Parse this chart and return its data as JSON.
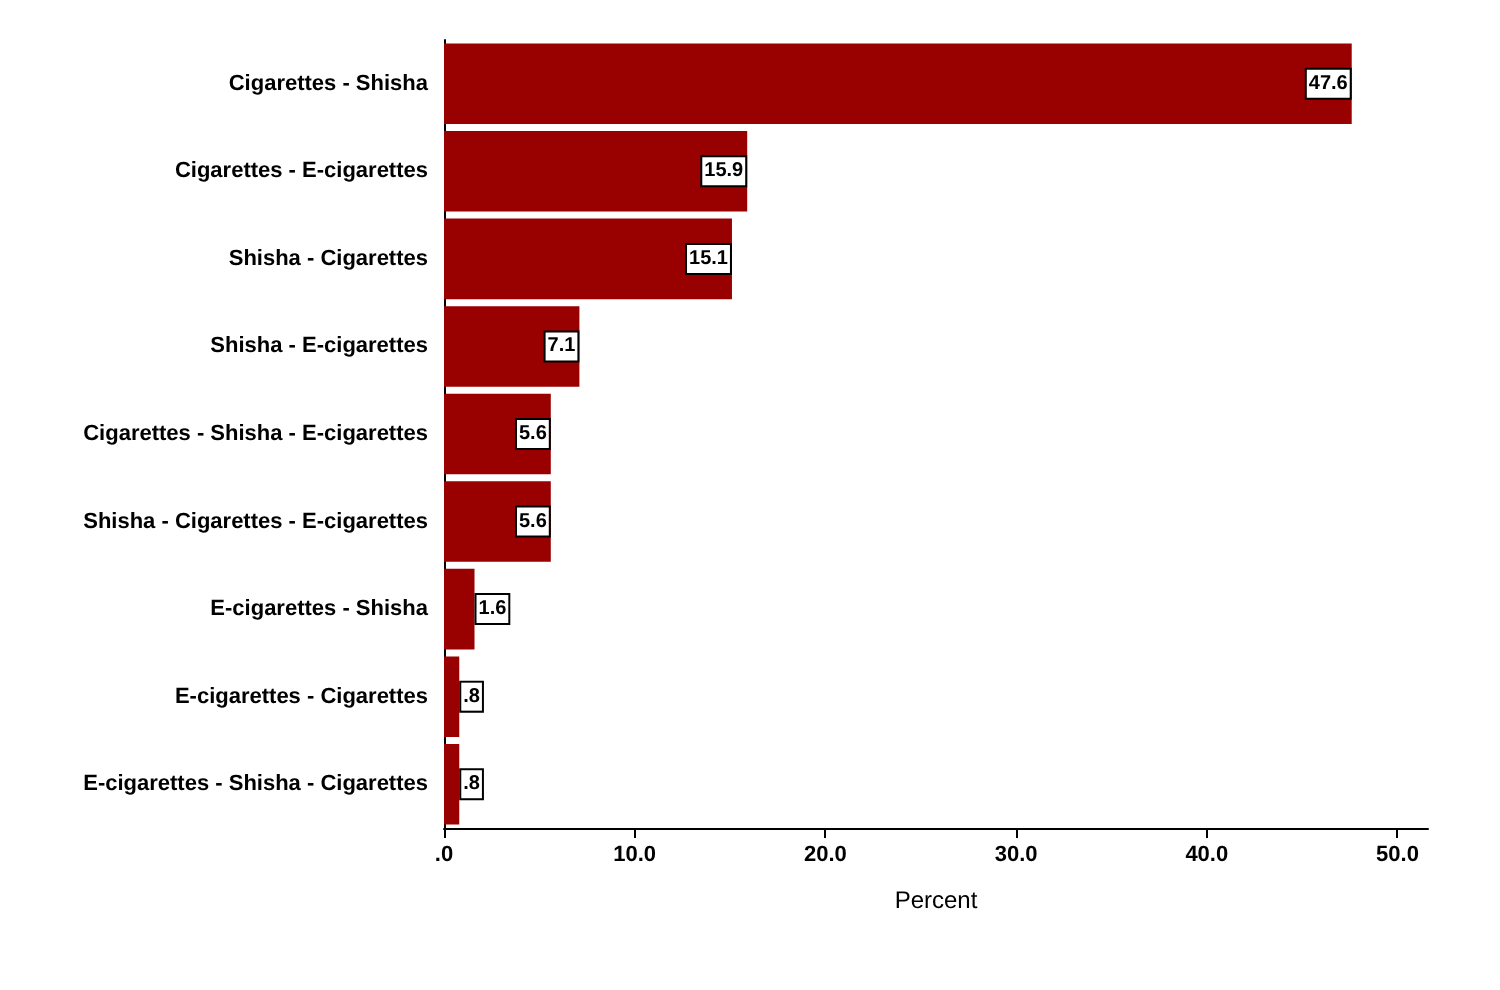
{
  "chart_data": {
    "type": "bar",
    "orientation": "horizontal",
    "xlabel": "Percent",
    "categories": [
      "Cigarettes - Shisha",
      "Cigarettes - E-cigarettes",
      "Shisha - Cigarettes",
      "Shisha - E-cigarettes",
      "Cigarettes - Shisha - E-cigarettes",
      "Shisha - Cigarettes - E-cigarettes",
      "E-cigarettes - Shisha",
      "E-cigarettes - Cigarettes",
      "E-cigarettes - Shisha - Cigarettes"
    ],
    "values": [
      47.6,
      15.9,
      15.1,
      7.1,
      5.6,
      5.6,
      1.6,
      0.8,
      0.8
    ],
    "value_labels": [
      "47.6",
      "15.9",
      "15.1",
      "7.1",
      "5.6",
      "5.6",
      "1.6",
      ".8",
      ".8"
    ],
    "color": "#990000",
    "xlim": [
      0,
      51.6
    ],
    "xticks": [
      {
        "value": 0,
        "label": ".0"
      },
      {
        "value": 10,
        "label": "10.0"
      },
      {
        "value": 20,
        "label": "20.0"
      },
      {
        "value": 30,
        "label": "30.0"
      },
      {
        "value": 40,
        "label": "40.0"
      },
      {
        "value": 50,
        "label": "50.0"
      }
    ],
    "grid": false
  }
}
